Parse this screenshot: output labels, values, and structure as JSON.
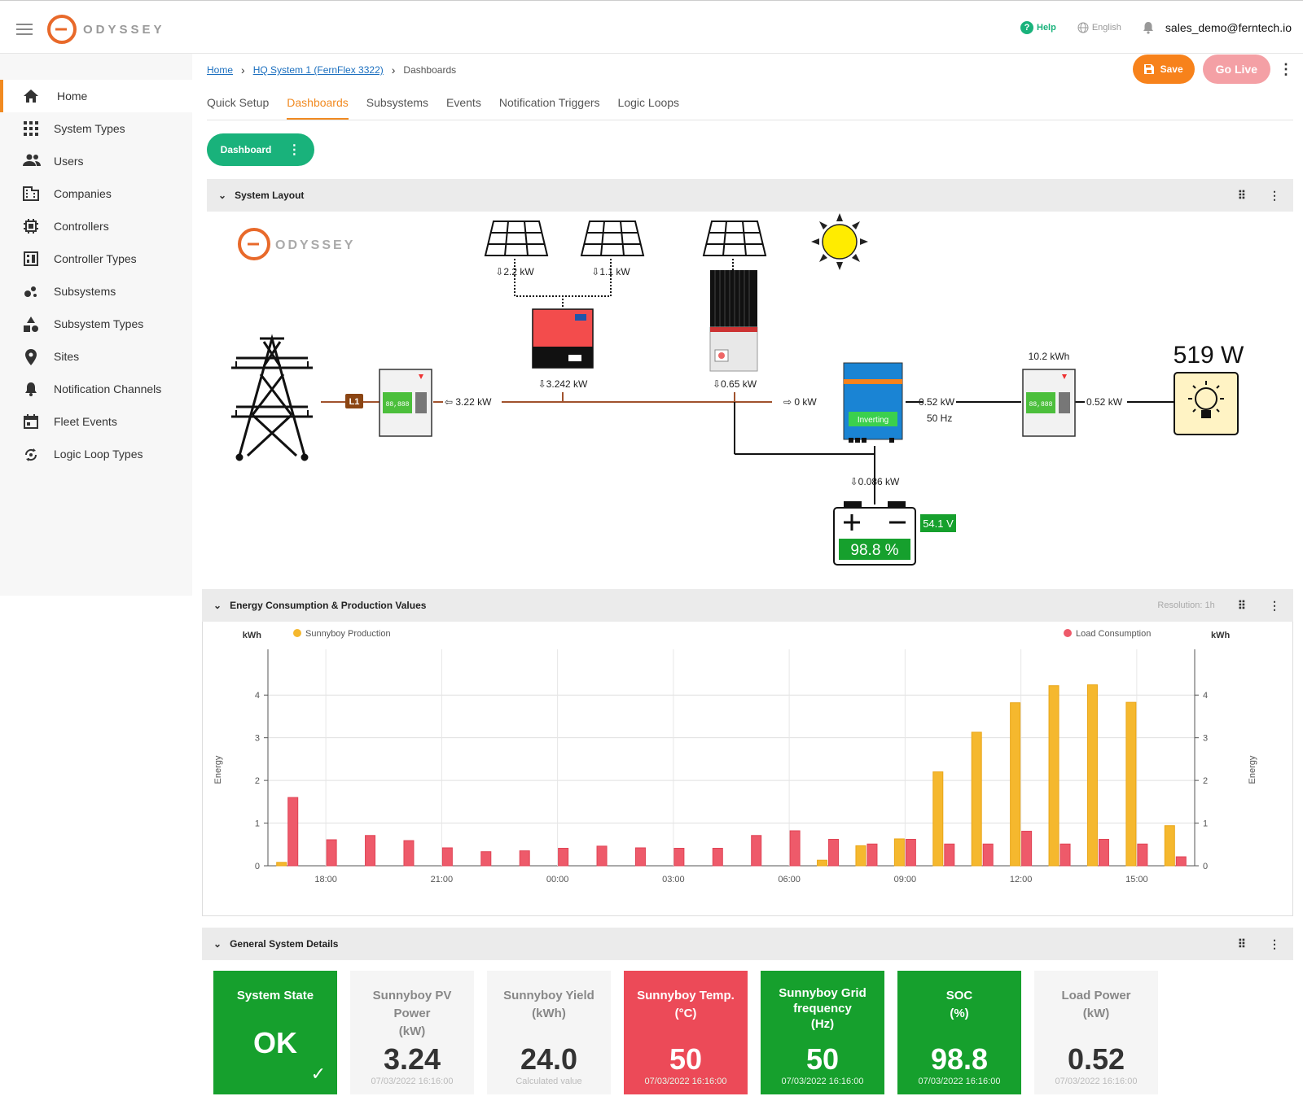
{
  "brand": {
    "name": "ODYSSEY"
  },
  "header": {
    "help": "Help",
    "language": "English",
    "user": "sales_demo@ferntech.io"
  },
  "sidebar": {
    "items": [
      {
        "label": "Home",
        "icon": "home-icon"
      },
      {
        "label": "System Types",
        "icon": "grid-icon"
      },
      {
        "label": "Users",
        "icon": "users-icon"
      },
      {
        "label": "Companies",
        "icon": "building-icon"
      },
      {
        "label": "Controllers",
        "icon": "chip-icon"
      },
      {
        "label": "Controller Types",
        "icon": "panel-icon"
      },
      {
        "label": "Subsystems",
        "icon": "bubbles-icon"
      },
      {
        "label": "Subsystem Types",
        "icon": "shapes-icon"
      },
      {
        "label": "Sites",
        "icon": "pin-icon"
      },
      {
        "label": "Notification Channels",
        "icon": "bell-icon"
      },
      {
        "label": "Fleet Events",
        "icon": "calendar-icon"
      },
      {
        "label": "Logic Loop Types",
        "icon": "loop-icon"
      }
    ]
  },
  "breadcrumb": {
    "home": "Home",
    "system": "HQ System 1 (FernFlex 3322)",
    "current": "Dashboards"
  },
  "toolbar": {
    "save": "Save",
    "go_live": "Go Live"
  },
  "tabs": [
    "Quick Setup",
    "Dashboards",
    "Subsystems",
    "Events",
    "Notification Triggers",
    "Logic Loops"
  ],
  "dashboard_button": "Dashboard",
  "system_layout": {
    "title": "System Layout",
    "logo_text": "ODYSSEY",
    "pv1": "⇩2.2 kW",
    "pv2": "⇩1.1 kW",
    "inverter_out": "⇩3.242 kW",
    "mppt_out": "⇩0.65 kW",
    "grid_flow": "⇦ 3.22 kW",
    "meter_tag": "L1",
    "multi_in": "⇨ 0 kW",
    "multi_out": "0.52 kW",
    "multi_freq": "50 Hz",
    "multi_state": "Inverting",
    "load_energy": "10.2 kWh",
    "load_flow": "0.52 kW",
    "load_power": "519 W",
    "battery_flow": "⇩0.086 kW",
    "battery_voltage": "54.1 V",
    "battery_soc": "98.8 %",
    "meter_display": "88,888"
  },
  "energy_panel": {
    "title": "Energy Consumption & Production Values",
    "resolution": "Resolution: 1h"
  },
  "chart_data": {
    "type": "bar",
    "x": [
      "17:00",
      "18:00",
      "19:00",
      "20:00",
      "21:00",
      "22:00",
      "23:00",
      "00:00",
      "01:00",
      "02:00",
      "03:00",
      "04:00",
      "05:00",
      "06:00",
      "07:00",
      "08:00",
      "09:00",
      "10:00",
      "11:00",
      "12:00",
      "13:00",
      "14:00",
      "15:00",
      "16:00"
    ],
    "xticks": [
      "18:00",
      "21:00",
      "00:00",
      "03:00",
      "06:00",
      "09:00",
      "12:00",
      "15:00"
    ],
    "series": [
      {
        "name": "Sunnyboy Production",
        "color": "#f5b82e",
        "values": [
          0.08,
          0,
          0,
          0,
          0,
          0,
          0,
          0,
          0,
          0,
          0,
          0,
          0,
          0,
          0.13,
          0.47,
          0.63,
          2.2,
          3.13,
          3.82,
          4.22,
          4.24,
          3.83,
          0.94
        ]
      },
      {
        "name": "Load Consumption",
        "color": "#ee5a6a",
        "values": [
          1.6,
          0.61,
          0.71,
          0.59,
          0.42,
          0.33,
          0.35,
          0.41,
          0.46,
          0.42,
          0.41,
          0.41,
          0.71,
          0.82,
          0.62,
          0.51,
          0.62,
          0.51,
          0.51,
          0.81,
          0.51,
          0.62,
          0.51,
          0.21
        ]
      }
    ],
    "ylabel": "kWh",
    "yaxis_title": "Energy",
    "ylim": [
      0,
      4.5
    ],
    "yticks": [
      0,
      1,
      2,
      3,
      4
    ],
    "legend": "top"
  },
  "details_panel": {
    "title": "General System Details"
  },
  "cards": [
    {
      "title": "System State",
      "unit": "",
      "value": "OK",
      "footer": "",
      "style": "green"
    },
    {
      "title": "Sunnyboy PV Power",
      "unit": "(kW)",
      "value": "3.24",
      "footer": "07/03/2022 16:16:00",
      "style": "plain"
    },
    {
      "title": "Sunnyboy Yield",
      "unit": "(kWh)",
      "value": "24.0",
      "footer": "Calculated value",
      "style": "plain"
    },
    {
      "title": "Sunnyboy Temp.",
      "unit": "(°C)",
      "value": "50",
      "footer": "07/03/2022 16:16:00",
      "style": "red"
    },
    {
      "title": "Sunnyboy Grid frequency",
      "unit": "(Hz)",
      "value": "50",
      "footer": "07/03/2022 16:16:00",
      "style": "green"
    },
    {
      "title": "SOC",
      "unit": "(%)",
      "value": "98.8",
      "footer": "07/03/2022 16:16:00",
      "style": "green"
    },
    {
      "title": "Load Power",
      "unit": "(kW)",
      "value": "0.52",
      "footer": "07/03/2022 16:16:00",
      "style": "plain"
    }
  ]
}
